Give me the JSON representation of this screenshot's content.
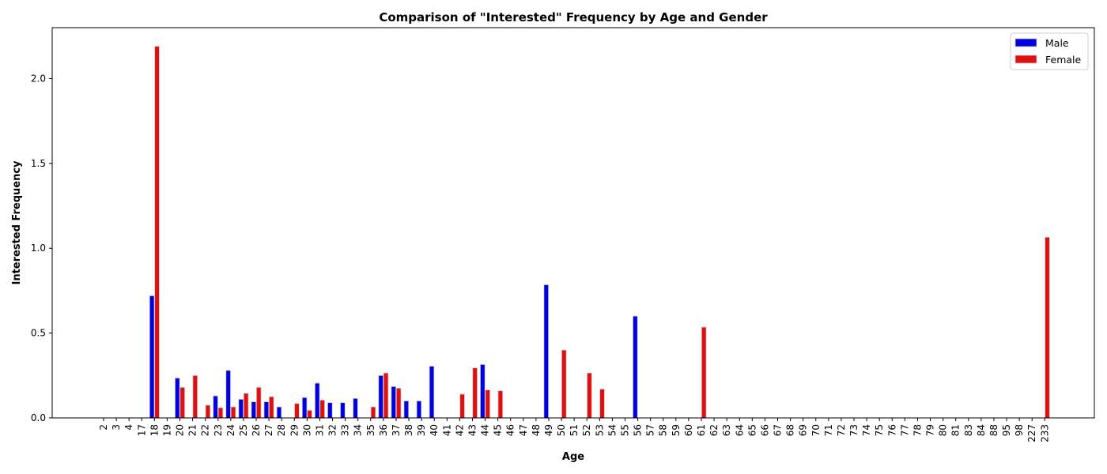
{
  "chart_data": {
    "type": "bar",
    "title": "Comparison of \"Interested\" Frequency by Age and Gender",
    "xlabel": "Age",
    "ylabel": "Interested Frequency",
    "ylim": [
      0,
      2.3
    ],
    "yticks": [
      "0.0",
      "0.5",
      "1.0",
      "1.5",
      "2.0"
    ],
    "categories": [
      "2",
      "3",
      "4",
      "17",
      "18",
      "19",
      "20",
      "21",
      "22",
      "23",
      "24",
      "25",
      "26",
      "27",
      "28",
      "29",
      "30",
      "31",
      "32",
      "33",
      "34",
      "35",
      "36",
      "37",
      "38",
      "39",
      "40",
      "41",
      "42",
      "43",
      "44",
      "45",
      "46",
      "47",
      "48",
      "49",
      "50",
      "51",
      "52",
      "53",
      "54",
      "55",
      "56",
      "57",
      "58",
      "59",
      "60",
      "61",
      "62",
      "63",
      "64",
      "65",
      "66",
      "67",
      "68",
      "69",
      "70",
      "71",
      "72",
      "73",
      "74",
      "75",
      "76",
      "77",
      "78",
      "79",
      "80",
      "81",
      "83",
      "84",
      "88",
      "95",
      "98",
      "227",
      "233"
    ],
    "series": [
      {
        "name": "Male",
        "color": "#0000e0",
        "values": [
          0,
          0,
          0,
          0,
          0.72,
          0,
          0.235,
          0,
          0,
          0.13,
          0.28,
          0.11,
          0.095,
          0.095,
          0.065,
          0,
          0.12,
          0.205,
          0.09,
          0.09,
          0.115,
          0,
          0.25,
          0.185,
          0.1,
          0.1,
          0.305,
          0,
          0,
          0,
          0.315,
          0,
          0,
          0,
          0,
          0.785,
          0,
          0,
          0,
          0,
          0,
          0,
          0.6,
          0,
          0,
          0,
          0,
          0,
          0,
          0,
          0,
          0,
          0,
          0,
          0,
          0,
          0,
          0,
          0,
          0,
          0,
          0,
          0,
          0,
          0,
          0,
          0,
          0,
          0,
          0,
          0,
          0,
          0,
          0,
          0
        ]
      },
      {
        "name": "Female",
        "color": "#e01010",
        "values": [
          0,
          0,
          0,
          0,
          2.19,
          0,
          0.18,
          0.25,
          0.075,
          0.06,
          0.065,
          0.145,
          0.18,
          0.125,
          0,
          0.085,
          0.045,
          0.105,
          0,
          0,
          0,
          0.065,
          0.265,
          0.175,
          0,
          0,
          0,
          0,
          0.14,
          0.295,
          0.165,
          0.16,
          0,
          0,
          0,
          0,
          0.4,
          0,
          0.265,
          0.17,
          0,
          0,
          0,
          0,
          0,
          0,
          0,
          0.535,
          0,
          0,
          0,
          0,
          0,
          0,
          0,
          0,
          0,
          0,
          0,
          0,
          0,
          0,
          0,
          0,
          0,
          0,
          0,
          0,
          0,
          0,
          0,
          0,
          0,
          0,
          1.065
        ]
      }
    ],
    "legend": {
      "position": "top-right"
    },
    "grid": false
  }
}
